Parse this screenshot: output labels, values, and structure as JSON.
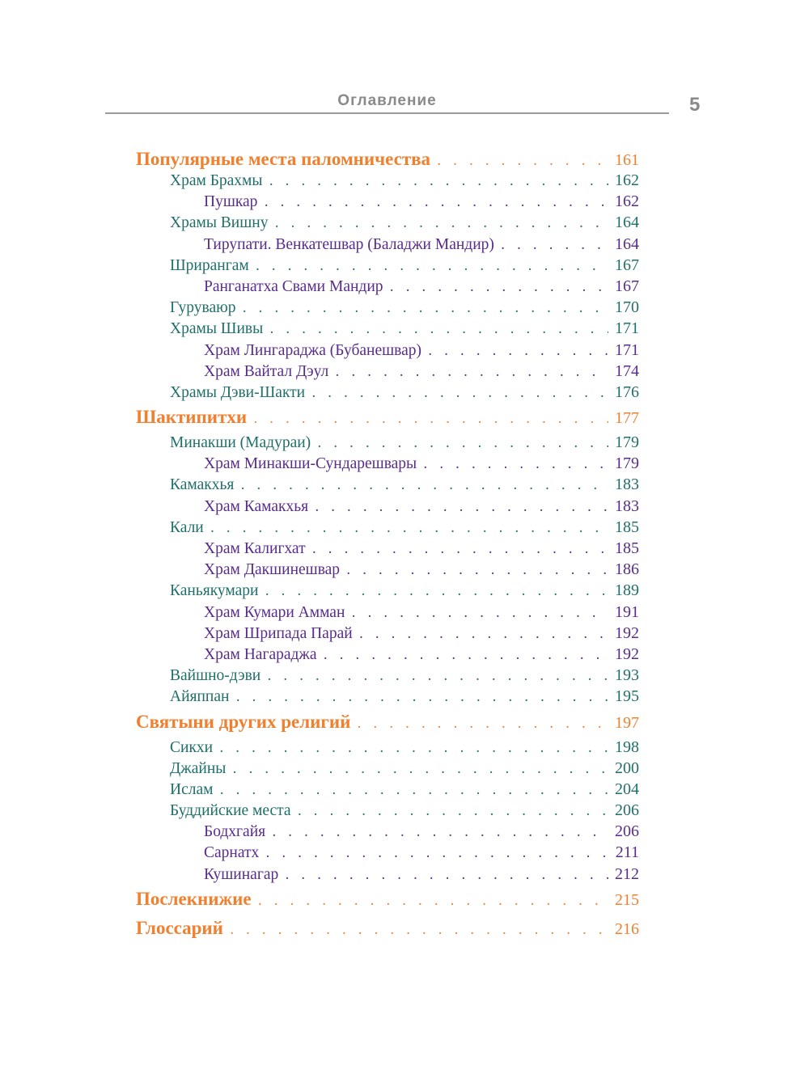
{
  "header": {
    "title": "Оглавление",
    "page_number": "5"
  },
  "colors": {
    "level1": "#f07f2e",
    "level2": "#1f6f6a",
    "level3": "#582c8c"
  },
  "entries": [
    {
      "level": 1,
      "label": "Популярные места паломничества",
      "page": "161"
    },
    {
      "level": 2,
      "label": "Храм Брахмы",
      "page": "162"
    },
    {
      "level": 3,
      "label": "Пушкар",
      "page": "162"
    },
    {
      "level": 2,
      "label": "Храмы Вишну",
      "page": "164"
    },
    {
      "level": 3,
      "label": "Тирупати. Венкатешвар (Баладжи Мандир)",
      "page": "164"
    },
    {
      "level": 2,
      "label": "Шрирангам",
      "page": "167"
    },
    {
      "level": 3,
      "label": "Ранганатха Свами Мандир",
      "page": "167"
    },
    {
      "level": 2,
      "label": "Гуруваюр",
      "page": "170"
    },
    {
      "level": 2,
      "label": "Храмы Шивы",
      "page": "171"
    },
    {
      "level": 3,
      "label": "Храм Лингараджа (Бубанешвар)",
      "page": "171"
    },
    {
      "level": 3,
      "label": "Храм Вайтал Дэул",
      "page": "174"
    },
    {
      "level": 2,
      "label": "Храмы Дэви-Шакти",
      "page": "176"
    },
    {
      "level": 1,
      "label": "Шактипитхи",
      "page": "177"
    },
    {
      "level": 2,
      "label": "Минакши (Мадураи)",
      "page": "179"
    },
    {
      "level": 3,
      "label": "Храм Минакши-Сундарешвары",
      "page": "179"
    },
    {
      "level": 2,
      "label": "Камакхья",
      "page": "183"
    },
    {
      "level": 3,
      "label": "Храм Камакхья",
      "page": "183"
    },
    {
      "level": 2,
      "label": "Кали",
      "page": "185"
    },
    {
      "level": 3,
      "label": "Храм Калигхат",
      "page": "185"
    },
    {
      "level": 3,
      "label": "Храм Дакшинешвар",
      "page": "186"
    },
    {
      "level": 2,
      "label": "Каньякумари",
      "page": "189"
    },
    {
      "level": 3,
      "label": "Храм Кумари Амман",
      "page": "191"
    },
    {
      "level": 3,
      "label": "Храм Шрипада Парай",
      "page": "192"
    },
    {
      "level": 3,
      "label": "Храм Нагараджа",
      "page": "192"
    },
    {
      "level": 2,
      "label": "Вайшно-дэви",
      "page": "193"
    },
    {
      "level": 2,
      "label": "Айяппан",
      "page": "195"
    },
    {
      "level": 1,
      "label": "Святыни других религий",
      "page": "197"
    },
    {
      "level": 2,
      "label": "Сикхи",
      "page": "198"
    },
    {
      "level": 2,
      "label": "Джайны",
      "page": "200"
    },
    {
      "level": 2,
      "label": "Ислам",
      "page": "204"
    },
    {
      "level": 2,
      "label": "Буддийские места",
      "page": "206"
    },
    {
      "level": 3,
      "label": "Бодхгайя",
      "page": "206"
    },
    {
      "level": 3,
      "label": "Сарнатх",
      "page": "211"
    },
    {
      "level": 3,
      "label": "Кушинагар",
      "page": "212"
    },
    {
      "level": 1,
      "label": "Послекнижие",
      "page": "215"
    },
    {
      "level": 1,
      "label": "Глоссарий",
      "page": "216"
    }
  ]
}
